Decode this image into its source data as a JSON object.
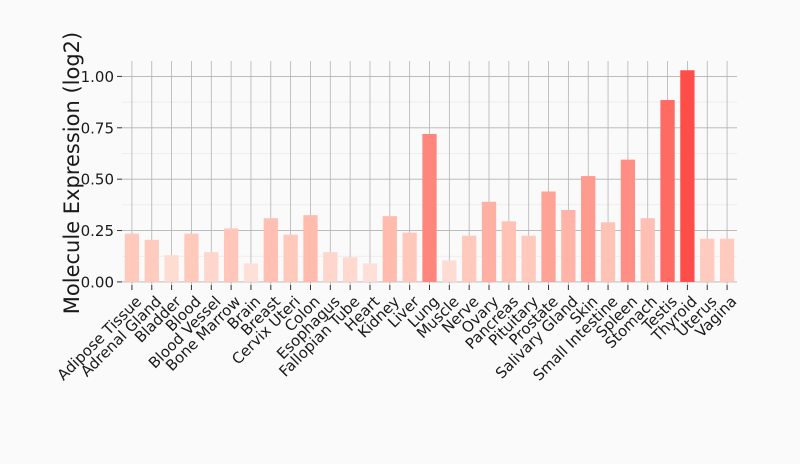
{
  "chart_data": {
    "type": "bar",
    "title": "",
    "xlabel": "",
    "ylabel": "Molecule Expression (log2)",
    "ylim": [
      -0.015,
      1.075
    ],
    "yticks": [
      0.0,
      0.25,
      0.5,
      0.75,
      1.0
    ],
    "ytick_labels": [
      "0.00",
      "0.25",
      "0.50",
      "0.75",
      "1.00"
    ],
    "grid": true,
    "legend": "none",
    "categories": [
      "Adipose Tissue",
      "Adrenal Gland",
      "Bladder",
      "Blood",
      "Blood Vessel",
      "Bone Marrow",
      "Brain",
      "Breast",
      "Cervix Uteri",
      "Colon",
      "Esophagus",
      "Fallopian Tube",
      "Heart",
      "Kidney",
      "Liver",
      "Lung",
      "Muscle",
      "Nerve",
      "Ovary",
      "Pancreas",
      "Pituitary",
      "Prostate",
      "Salivary Gland",
      "Skin",
      "Small Intestine",
      "Spleen",
      "Stomach",
      "Testis",
      "Thyroid",
      "Uterus",
      "Vagina"
    ],
    "values": [
      0.235,
      0.205,
      0.13,
      0.235,
      0.145,
      0.26,
      0.09,
      0.31,
      0.23,
      0.325,
      0.145,
      0.12,
      0.09,
      0.32,
      0.24,
      0.72,
      0.105,
      0.225,
      0.39,
      0.295,
      0.225,
      0.44,
      0.35,
      0.515,
      0.29,
      0.595,
      0.31,
      0.885,
      1.03,
      0.21,
      0.21
    ],
    "colors": [
      "#ffc9bc",
      "#ffcbbe",
      "#ffdcd2",
      "#ffc9bc",
      "#ffd6cc",
      "#ffc6b9",
      "#ffe0d8",
      "#ffbfb2",
      "#ffc9bc",
      "#ffbcae",
      "#ffd6cc",
      "#ffd9cf",
      "#ffe0d8",
      "#ffbcae",
      "#ffc8bb",
      "#ff867c",
      "#ffdcd3",
      "#ffcabd",
      "#ffb0a3",
      "#ffc2b5",
      "#ffcabd",
      "#ffa397",
      "#ffb4a7",
      "#ff9a8e",
      "#ffc3b6",
      "#ff8f84",
      "#ffbfb2",
      "#ff6a62",
      "#ff4d4a",
      "#ffcbbe",
      "#ffcbbe"
    ]
  }
}
